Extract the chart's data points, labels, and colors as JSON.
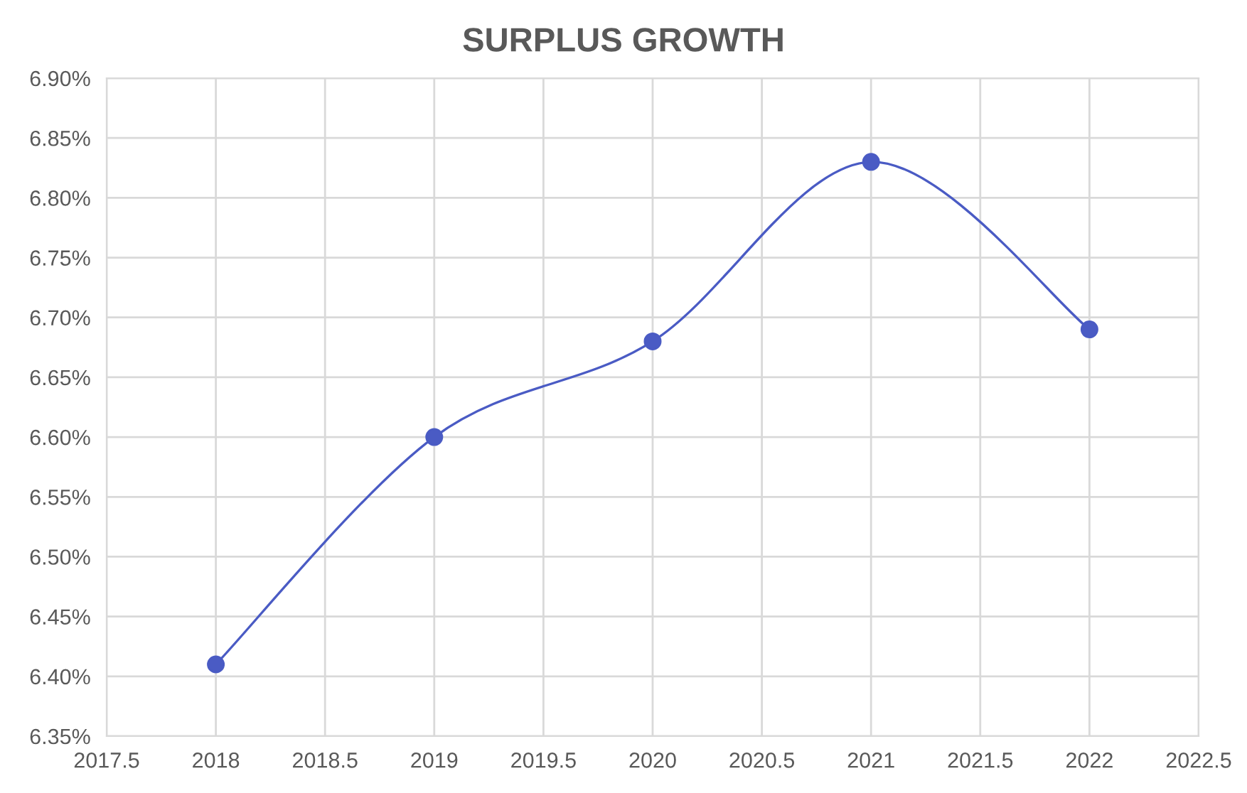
{
  "chart_data": {
    "type": "line",
    "title": "SURPLUS GROWTH",
    "x": [
      2018,
      2019,
      2020,
      2021,
      2022
    ],
    "series": [
      {
        "color": "#4a5bc4",
        "values": [
          6.41,
          6.6,
          6.68,
          6.83,
          6.69
        ]
      }
    ],
    "xlim": [
      2017.5,
      2022.5
    ],
    "xticks": [
      2017.5,
      2018,
      2018.5,
      2019,
      2019.5,
      2020,
      2020.5,
      2021,
      2021.5,
      2022,
      2022.5
    ],
    "ylim": [
      6.35,
      6.9
    ],
    "yticks": [
      {
        "value": 6.35,
        "label": "6.35%"
      },
      {
        "value": 6.4,
        "label": "6.40%"
      },
      {
        "value": 6.45,
        "label": "6.45%"
      },
      {
        "value": 6.5,
        "label": "6.50%"
      },
      {
        "value": 6.55,
        "label": "6.55%"
      },
      {
        "value": 6.6,
        "label": "6.60%"
      },
      {
        "value": 6.65,
        "label": "6.65%"
      },
      {
        "value": 6.7,
        "label": "6.70%"
      },
      {
        "value": 6.75,
        "label": "6.75%"
      },
      {
        "value": 6.8,
        "label": "6.80%"
      },
      {
        "value": 6.85,
        "label": "6.85%"
      },
      {
        "value": 6.9,
        "label": "6.90%"
      }
    ],
    "grid": true,
    "marker": "circle",
    "line_style": "solid",
    "legend": false
  }
}
